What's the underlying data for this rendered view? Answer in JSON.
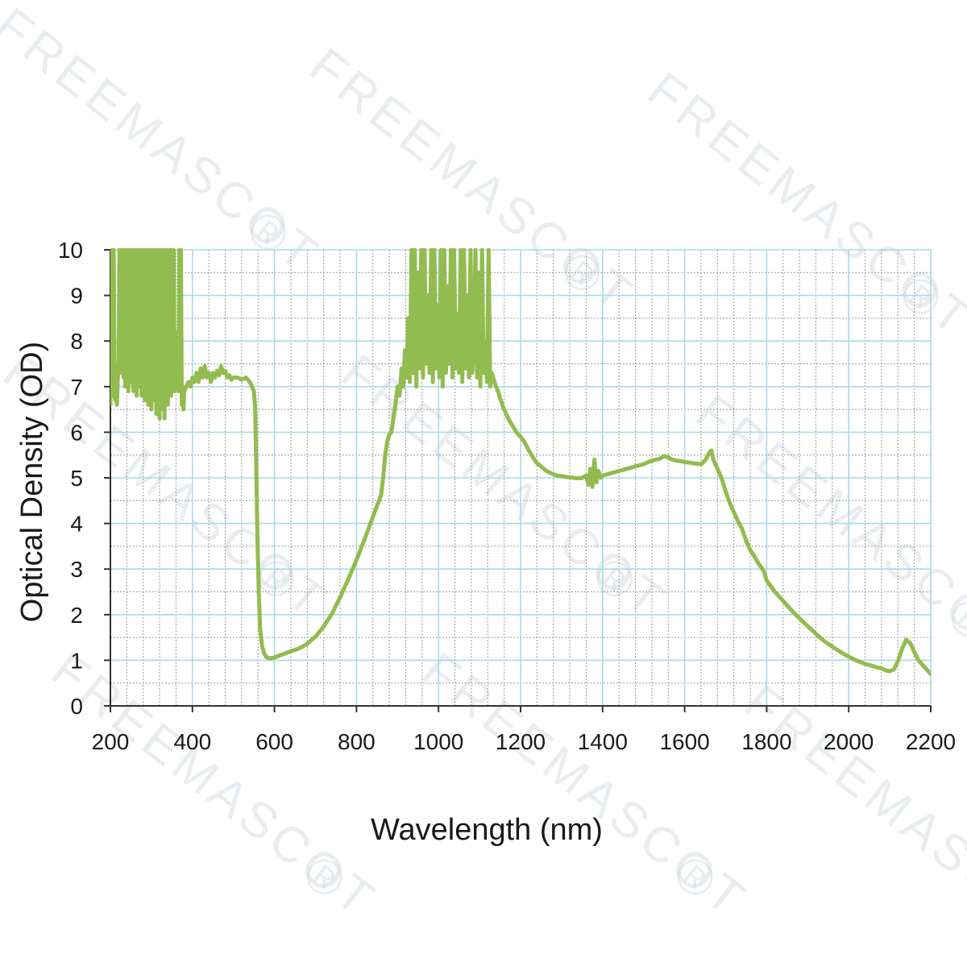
{
  "watermark": {
    "text": "FREEMASCOT",
    "mark": "®"
  },
  "chart_data": {
    "type": "line",
    "title": "",
    "xlabel": "Wavelength (nm)",
    "ylabel": "Optical Density (OD)",
    "xlim": [
      200,
      2200
    ],
    "ylim": [
      0,
      10
    ],
    "x_ticks": [
      200,
      400,
      600,
      800,
      1000,
      1200,
      1400,
      1600,
      1800,
      2000,
      2200
    ],
    "y_ticks": [
      0,
      1,
      2,
      3,
      4,
      5,
      6,
      7,
      8,
      9,
      10
    ],
    "grid": true,
    "legend": "none",
    "colors": {
      "line": "#92bc4f",
      "major_grid": "#a8dbe6",
      "minor_grid": "#9a9a9a",
      "axis": "#333333",
      "text": "#1a1a1a"
    },
    "series": [
      {
        "values": [
          [
            200,
            6.6
          ],
          [
            202,
            8.0
          ],
          [
            204,
            10
          ],
          [
            206,
            6.8
          ],
          [
            208,
            10
          ],
          [
            210,
            7.0
          ],
          [
            212,
            6.7
          ],
          [
            214,
            7.4
          ],
          [
            216,
            6.6
          ],
          [
            218,
            7.2
          ],
          [
            220,
            7.6
          ],
          [
            222,
            10
          ],
          [
            224,
            7.3
          ],
          [
            226,
            10
          ],
          [
            228,
            7.5
          ],
          [
            230,
            9.0
          ],
          [
            232,
            7.2
          ],
          [
            234,
            10
          ],
          [
            236,
            7.0
          ],
          [
            238,
            8.5
          ],
          [
            240,
            7.3
          ],
          [
            242,
            10
          ],
          [
            244,
            6.9
          ],
          [
            246,
            9.2
          ],
          [
            248,
            7.1
          ],
          [
            250,
            10
          ],
          [
            252,
            7.4
          ],
          [
            254,
            8.8
          ],
          [
            256,
            6.9
          ],
          [
            258,
            10
          ],
          [
            260,
            7.2
          ],
          [
            262,
            9.5
          ],
          [
            264,
            6.8
          ],
          [
            266,
            10
          ],
          [
            268,
            7.3
          ],
          [
            270,
            8.6
          ],
          [
            272,
            7.0
          ],
          [
            274,
            10
          ],
          [
            276,
            6.8
          ],
          [
            278,
            9.0
          ],
          [
            280,
            7.1
          ],
          [
            282,
            10
          ],
          [
            284,
            6.7
          ],
          [
            286,
            8.4
          ],
          [
            288,
            7.0
          ],
          [
            290,
            10
          ],
          [
            292,
            6.6
          ],
          [
            294,
            9.3
          ],
          [
            296,
            7.2
          ],
          [
            298,
            10
          ],
          [
            300,
            6.5
          ],
          [
            302,
            8.9
          ],
          [
            304,
            7.0
          ],
          [
            306,
            10
          ],
          [
            308,
            6.7
          ],
          [
            310,
            9.1
          ],
          [
            312,
            6.4
          ],
          [
            314,
            10
          ],
          [
            316,
            6.9
          ],
          [
            318,
            8.5
          ],
          [
            320,
            6.3
          ],
          [
            322,
            10
          ],
          [
            324,
            6.8
          ],
          [
            326,
            9.4
          ],
          [
            328,
            6.5
          ],
          [
            330,
            10
          ],
          [
            332,
            6.3
          ],
          [
            334,
            8.7
          ],
          [
            336,
            6.9
          ],
          [
            338,
            10
          ],
          [
            340,
            6.6
          ],
          [
            342,
            9.0
          ],
          [
            344,
            7.0
          ],
          [
            346,
            10
          ],
          [
            348,
            6.8
          ],
          [
            350,
            8.3
          ],
          [
            352,
            7.1
          ],
          [
            354,
            10
          ],
          [
            356,
            6.9
          ],
          [
            358,
            8.2
          ],
          [
            360,
            7.0
          ],
          [
            362,
            7.8
          ],
          [
            364,
            7.2
          ],
          [
            366,
            6.9
          ],
          [
            368,
            10
          ],
          [
            370,
            7.0
          ],
          [
            372,
            10
          ],
          [
            374,
            6.6
          ],
          [
            376,
            7.0
          ],
          [
            378,
            6.5
          ],
          [
            380,
            6.9
          ],
          [
            385,
            7.0
          ],
          [
            390,
            7.1
          ],
          [
            395,
            7.0
          ],
          [
            400,
            7.2
          ],
          [
            405,
            7.1
          ],
          [
            410,
            7.3
          ],
          [
            415,
            7.1
          ],
          [
            420,
            7.4
          ],
          [
            425,
            7.2
          ],
          [
            430,
            7.45
          ],
          [
            435,
            7.2
          ],
          [
            440,
            7.3
          ],
          [
            445,
            7.1
          ],
          [
            450,
            7.3
          ],
          [
            455,
            7.2
          ],
          [
            460,
            7.35
          ],
          [
            465,
            7.25
          ],
          [
            470,
            7.45
          ],
          [
            475,
            7.3
          ],
          [
            480,
            7.35
          ],
          [
            485,
            7.2
          ],
          [
            490,
            7.25
          ],
          [
            495,
            7.15
          ],
          [
            500,
            7.2
          ],
          [
            510,
            7.2
          ],
          [
            520,
            7.15
          ],
          [
            530,
            7.2
          ],
          [
            540,
            7.1
          ],
          [
            545,
            7.0
          ],
          [
            550,
            6.9
          ],
          [
            553,
            6.5
          ],
          [
            556,
            5.0
          ],
          [
            559,
            3.5
          ],
          [
            562,
            2.4
          ],
          [
            565,
            1.7
          ],
          [
            570,
            1.3
          ],
          [
            575,
            1.15
          ],
          [
            580,
            1.07
          ],
          [
            590,
            1.04
          ],
          [
            600,
            1.06
          ],
          [
            620,
            1.13
          ],
          [
            640,
            1.2
          ],
          [
            660,
            1.26
          ],
          [
            680,
            1.36
          ],
          [
            700,
            1.52
          ],
          [
            720,
            1.74
          ],
          [
            740,
            2.02
          ],
          [
            760,
            2.38
          ],
          [
            780,
            2.78
          ],
          [
            800,
            3.2
          ],
          [
            820,
            3.66
          ],
          [
            840,
            4.15
          ],
          [
            860,
            4.62
          ],
          [
            865,
            5.0
          ],
          [
            870,
            5.5
          ],
          [
            875,
            5.8
          ],
          [
            880,
            5.95
          ],
          [
            885,
            6.0
          ],
          [
            890,
            6.3
          ],
          [
            895,
            6.6
          ],
          [
            900,
            7.0
          ],
          [
            905,
            6.8
          ],
          [
            910,
            7.4
          ],
          [
            914,
            7.0
          ],
          [
            918,
            7.8
          ],
          [
            922,
            7.2
          ],
          [
            926,
            8.5
          ],
          [
            930,
            7.1
          ],
          [
            934,
            10
          ],
          [
            938,
            7.3
          ],
          [
            942,
            10
          ],
          [
            946,
            7.0
          ],
          [
            950,
            9.5
          ],
          [
            954,
            7.4
          ],
          [
            958,
            10
          ],
          [
            962,
            7.2
          ],
          [
            966,
            10
          ],
          [
            970,
            7.5
          ],
          [
            974,
            9.0
          ],
          [
            978,
            7.3
          ],
          [
            982,
            10
          ],
          [
            986,
            7.1
          ],
          [
            990,
            10
          ],
          [
            994,
            7.4
          ],
          [
            998,
            8.8
          ],
          [
            1002,
            7.2
          ],
          [
            1006,
            10
          ],
          [
            1010,
            7.0
          ],
          [
            1014,
            10
          ],
          [
            1018,
            7.3
          ],
          [
            1022,
            9.2
          ],
          [
            1026,
            7.5
          ],
          [
            1030,
            10
          ],
          [
            1034,
            7.2
          ],
          [
            1038,
            10
          ],
          [
            1042,
            7.4
          ],
          [
            1046,
            8.6
          ],
          [
            1050,
            7.3
          ],
          [
            1054,
            10
          ],
          [
            1058,
            7.1
          ],
          [
            1062,
            10
          ],
          [
            1066,
            7.4
          ],
          [
            1070,
            9.0
          ],
          [
            1074,
            7.2
          ],
          [
            1078,
            10
          ],
          [
            1082,
            7.3
          ],
          [
            1086,
            7.8
          ],
          [
            1090,
            10
          ],
          [
            1094,
            7.2
          ],
          [
            1098,
            9.5
          ],
          [
            1102,
            7.0
          ],
          [
            1106,
            10
          ],
          [
            1110,
            7.3
          ],
          [
            1114,
            8.0
          ],
          [
            1118,
            7.1
          ],
          [
            1122,
            10
          ],
          [
            1126,
            7.0
          ],
          [
            1130,
            7.3
          ],
          [
            1135,
            7.15
          ],
          [
            1140,
            7.0
          ],
          [
            1145,
            6.9
          ],
          [
            1150,
            6.75
          ],
          [
            1160,
            6.5
          ],
          [
            1170,
            6.3
          ],
          [
            1180,
            6.15
          ],
          [
            1190,
            6.0
          ],
          [
            1200,
            5.9
          ],
          [
            1210,
            5.78
          ],
          [
            1220,
            5.6
          ],
          [
            1230,
            5.45
          ],
          [
            1240,
            5.32
          ],
          [
            1250,
            5.25
          ],
          [
            1260,
            5.17
          ],
          [
            1270,
            5.12
          ],
          [
            1280,
            5.08
          ],
          [
            1290,
            5.05
          ],
          [
            1300,
            5.04
          ],
          [
            1310,
            5.02
          ],
          [
            1320,
            5.01
          ],
          [
            1330,
            5.0
          ],
          [
            1340,
            4.99
          ],
          [
            1350,
            5.0
          ],
          [
            1360,
            5.05
          ],
          [
            1365,
            4.85
          ],
          [
            1370,
            5.2
          ],
          [
            1375,
            4.8
          ],
          [
            1380,
            5.4
          ],
          [
            1385,
            4.9
          ],
          [
            1390,
            5.15
          ],
          [
            1395,
            5.0
          ],
          [
            1400,
            5.05
          ],
          [
            1420,
            5.1
          ],
          [
            1440,
            5.15
          ],
          [
            1460,
            5.2
          ],
          [
            1480,
            5.25
          ],
          [
            1500,
            5.3
          ],
          [
            1520,
            5.38
          ],
          [
            1540,
            5.42
          ],
          [
            1550,
            5.48
          ],
          [
            1560,
            5.45
          ],
          [
            1570,
            5.4
          ],
          [
            1580,
            5.38
          ],
          [
            1600,
            5.35
          ],
          [
            1620,
            5.32
          ],
          [
            1640,
            5.3
          ],
          [
            1650,
            5.38
          ],
          [
            1660,
            5.55
          ],
          [
            1665,
            5.6
          ],
          [
            1670,
            5.4
          ],
          [
            1680,
            5.2
          ],
          [
            1690,
            5.0
          ],
          [
            1700,
            4.7
          ],
          [
            1710,
            4.45
          ],
          [
            1720,
            4.25
          ],
          [
            1730,
            4.05
          ],
          [
            1740,
            3.88
          ],
          [
            1750,
            3.62
          ],
          [
            1760,
            3.42
          ],
          [
            1770,
            3.28
          ],
          [
            1780,
            3.12
          ],
          [
            1790,
            3.0
          ],
          [
            1795,
            2.9
          ],
          [
            1800,
            2.75
          ],
          [
            1820,
            2.5
          ],
          [
            1840,
            2.3
          ],
          [
            1860,
            2.1
          ],
          [
            1880,
            1.92
          ],
          [
            1900,
            1.75
          ],
          [
            1920,
            1.58
          ],
          [
            1940,
            1.42
          ],
          [
            1960,
            1.3
          ],
          [
            1980,
            1.18
          ],
          [
            2000,
            1.08
          ],
          [
            2020,
            0.99
          ],
          [
            2040,
            0.92
          ],
          [
            2060,
            0.87
          ],
          [
            2080,
            0.82
          ],
          [
            2090,
            0.78
          ],
          [
            2100,
            0.76
          ],
          [
            2110,
            0.8
          ],
          [
            2120,
            0.98
          ],
          [
            2130,
            1.25
          ],
          [
            2140,
            1.45
          ],
          [
            2150,
            1.38
          ],
          [
            2160,
            1.18
          ],
          [
            2170,
            1.0
          ],
          [
            2180,
            0.9
          ],
          [
            2190,
            0.8
          ],
          [
            2200,
            0.7
          ]
        ]
      }
    ]
  }
}
